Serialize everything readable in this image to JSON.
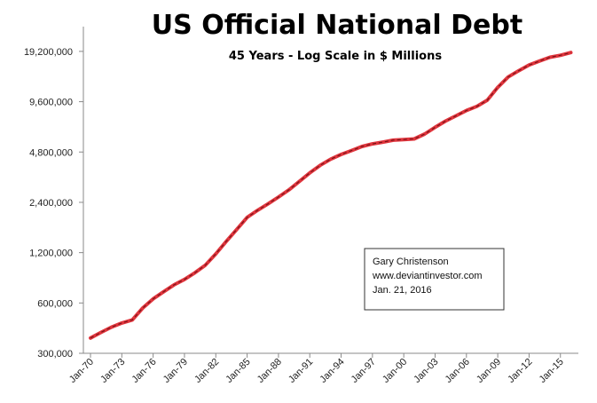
{
  "chart_data": {
    "type": "line",
    "title": "US Official National Debt",
    "subtitle": "45 Years - Log Scale in $ Millions",
    "xlabel": "",
    "ylabel": "",
    "y_scale": "log",
    "ylim": [
      300000,
      27000000
    ],
    "y_ticks": [
      "300,000",
      "600,000",
      "1,200,000",
      "2,400,000",
      "4,800,000",
      "9,600,000",
      "19,200,000"
    ],
    "y_tick_values": [
      300000,
      600000,
      1200000,
      2400000,
      4800000,
      9600000,
      19200000
    ],
    "x_ticks": [
      "Jan-70",
      "Jan-73",
      "Jan-76",
      "Jan-79",
      "Jan-82",
      "Jan-85",
      "Jan-88",
      "Jan-91",
      "Jan-94",
      "Jan-97",
      "Jan-00",
      "Jan-03",
      "Jan-06",
      "Jan-09",
      "Jan-12",
      "Jan-15"
    ],
    "x_tick_years": [
      1970,
      1973,
      1976,
      1979,
      1982,
      1985,
      1988,
      1991,
      1994,
      1997,
      2000,
      2003,
      2006,
      2009,
      2012,
      2015
    ],
    "grid": false,
    "series": [
      {
        "name": "",
        "color": "#e0353d",
        "x": [
          1970,
          1971,
          1972,
          1973,
          1974,
          1975,
          1976,
          1977,
          1978,
          1979,
          1980,
          1981,
          1982,
          1983,
          1984,
          1985,
          1986,
          1987,
          1988,
          1989,
          1990,
          1991,
          1992,
          1993,
          1994,
          1995,
          1996,
          1997,
          1998,
          1999,
          2000,
          2001,
          2002,
          2003,
          2004,
          2005,
          2006,
          2007,
          2008,
          2009,
          2010,
          2011,
          2012,
          2013,
          2014,
          2015,
          2016
        ],
        "values": [
          370000,
          400000,
          430000,
          455000,
          475000,
          560000,
          635000,
          700000,
          770000,
          830000,
          910000,
          1010000,
          1180000,
          1400000,
          1650000,
          1950000,
          2150000,
          2350000,
          2580000,
          2850000,
          3200000,
          3600000,
          4000000,
          4350000,
          4640000,
          4900000,
          5180000,
          5370000,
          5500000,
          5650000,
          5700000,
          5750000,
          6150000,
          6750000,
          7350000,
          7900000,
          8500000,
          9000000,
          9800000,
          11700000,
          13500000,
          14700000,
          15900000,
          16800000,
          17700000,
          18200000,
          18900000
        ]
      }
    ],
    "annotation": [
      "Gary Christenson",
      "www.deviantinvestor.com",
      "Jan. 21, 2016"
    ]
  }
}
